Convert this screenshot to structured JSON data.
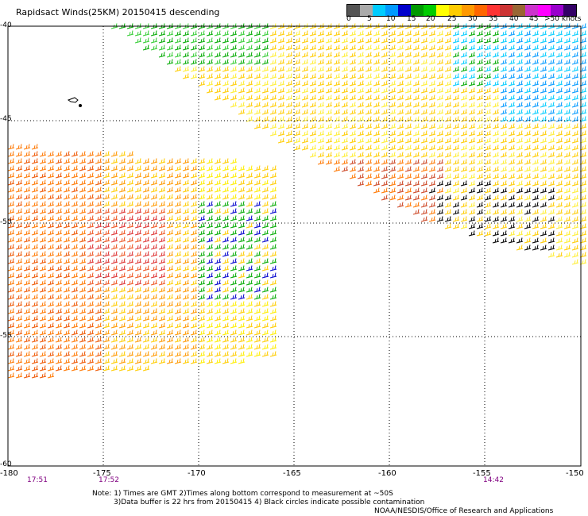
{
  "title": "Rapidsact Winds(25KM) 20150415 descending",
  "legend": {
    "labels": [
      "0",
      "5",
      "10",
      "15",
      "20",
      "25",
      "30",
      "35",
      "40",
      "45",
      ">50 knots"
    ],
    "colors": [
      "#555555",
      "#aaaaaa",
      "#00ccff",
      "#0099ff",
      "#0000cc",
      "#009900",
      "#00cc00",
      "#ffff00",
      "#ffcc00",
      "#ff9900",
      "#ff6600",
      "#ff3333",
      "#cc3333",
      "#996633",
      "#cc33cc",
      "#ff00ff",
      "#9900cc",
      "#330066"
    ]
  },
  "axes": {
    "x_ticks": [
      "-180",
      "-175",
      "-170",
      "-165",
      "-160",
      "-155",
      "-150"
    ],
    "y_ticks": [
      "-40",
      "-45",
      "-50",
      "-55",
      "-60"
    ]
  },
  "times": [
    {
      "label": "17:51"
    },
    {
      "label": "17:52"
    },
    {
      "label": "14:42"
    }
  ],
  "notes": {
    "line1": "Note: 1) Times are GMT 2)Times along bottom correspond to measurement at ~50S",
    "line2": "3)Data buffer is 22 hrs from 20150415 4) Black circles indicate possible contamination",
    "line3": "NOAA/NESDIS/Office of Research and Applications"
  }
}
